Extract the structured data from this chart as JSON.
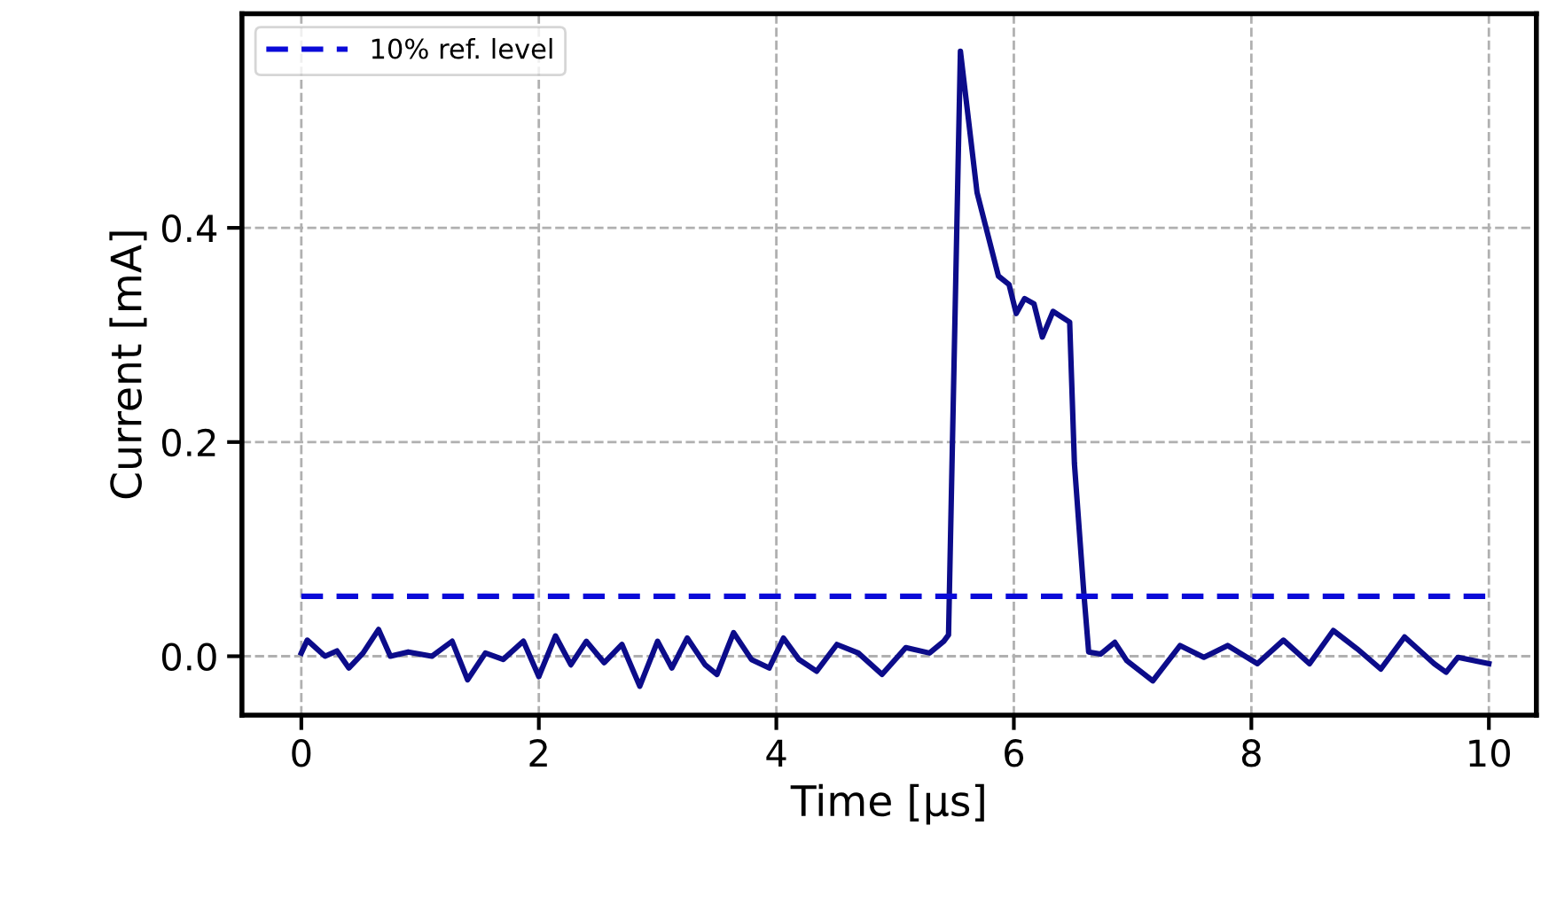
{
  "chart_data": {
    "type": "line",
    "xlabel": "Time [μs]",
    "ylabel": "Current [mA]",
    "xlim": [
      -0.5,
      10.4
    ],
    "ylim": [
      -0.055,
      0.6
    ],
    "xticks": [
      0,
      2,
      4,
      6,
      8,
      10
    ],
    "yticks": [
      {
        "value": 0,
        "label": "0.0"
      },
      {
        "value": 0.2,
        "label": "0.2"
      },
      {
        "value": 0.4,
        "label": "0.4"
      }
    ],
    "grid": true,
    "legend": "top left",
    "series": [
      {
        "color": "#0c0c8a",
        "line_style": "solid",
        "x": [
          0,
          0.05,
          0.2,
          0.3,
          0.4,
          0.52,
          0.65,
          0.75,
          0.9,
          1.1,
          1.27,
          1.4,
          1.55,
          1.7,
          1.87,
          2.0,
          2.14,
          2.27,
          2.4,
          2.55,
          2.7,
          2.85,
          3.0,
          3.12,
          3.25,
          3.4,
          3.5,
          3.64,
          3.79,
          3.94,
          4.06,
          4.19,
          4.34,
          4.51,
          4.69,
          4.89,
          5.09,
          5.29,
          5.41,
          5.45,
          5.55,
          5.69,
          5.87,
          5.96,
          6.02,
          6.09,
          6.17,
          6.24,
          6.33,
          6.47,
          6.51,
          6.59,
          6.63,
          6.73,
          6.85,
          6.95,
          7.17,
          7.4,
          7.6,
          7.8,
          8.05,
          8.27,
          8.49,
          8.69,
          8.89,
          9.09,
          9.29,
          9.54,
          9.64,
          9.74,
          10.0
        ],
        "values": [
          0.003,
          0.015,
          0,
          0.005,
          -0.011,
          0.003,
          0.025,
          0,
          0.004,
          0,
          0.014,
          -0.022,
          0.003,
          -0.003,
          0.014,
          -0.019,
          0.019,
          -0.008,
          0.014,
          -0.006,
          0.011,
          -0.028,
          0.014,
          -0.011,
          0.017,
          -0.008,
          -0.017,
          0.022,
          -0.003,
          -0.011,
          0.017,
          -0.003,
          -0.014,
          0.011,
          0.003,
          -0.017,
          0.008,
          0.003,
          0.014,
          0.02,
          0.565,
          0.433,
          0.355,
          0.347,
          0.32,
          0.334,
          0.329,
          0.298,
          0.322,
          0.312,
          0.18,
          0.058,
          0.004,
          0.002,
          0.013,
          -0.004,
          -0.023,
          0.01,
          -0.001,
          0.01,
          -0.007,
          0.015,
          -0.007,
          0.024,
          0.007,
          -0.012,
          0.018,
          -0.007,
          -0.015,
          -0.001,
          -0.007
        ]
      },
      {
        "name": "10% ref. level",
        "color": "#0a0ad8",
        "line_style": "dashed",
        "x": [
          0,
          10
        ],
        "values": [
          0.056,
          0.056
        ]
      }
    ]
  }
}
